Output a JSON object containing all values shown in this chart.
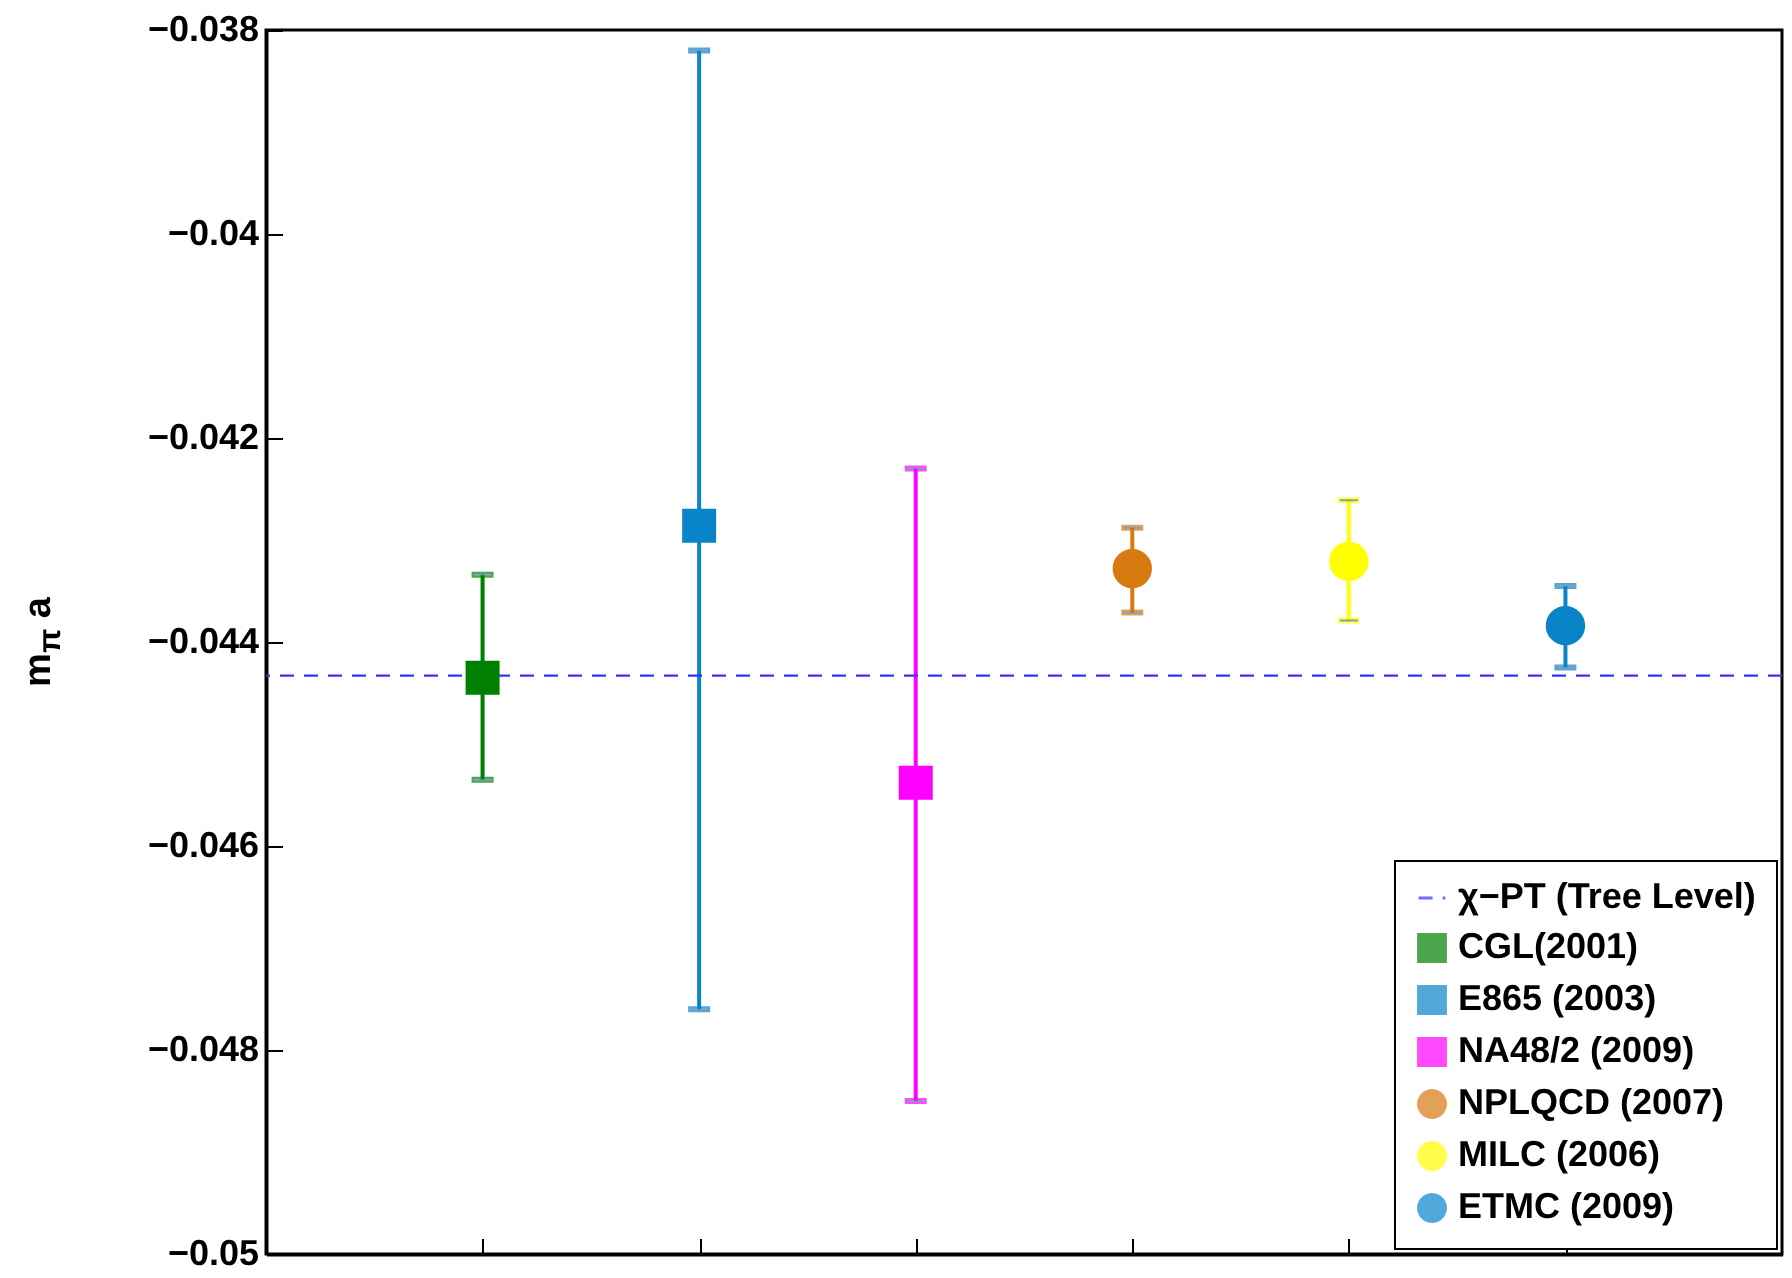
{
  "chart_data": {
    "type": "scatter",
    "ylabel": "m$_{π}$ a",
    "categories": [
      null,
      null,
      null,
      null,
      null,
      null
    ],
    "ylim": [
      -0.05,
      -0.038
    ],
    "yticks": [
      -0.05,
      -0.048,
      -0.046,
      -0.044,
      -0.042,
      -0.04,
      -0.038
    ],
    "grid": false,
    "legend": "bottom right",
    "tick_labels": "y",
    "ref_lines": [
      {
        "axis": "y",
        "value": -0.04433,
        "label": "χ−PT (Tree Level)",
        "color": "#3333ff",
        "line_style": "dashed"
      }
    ],
    "series": [
      {
        "name": "CGL(2001)",
        "color": "#007f00",
        "marker": "square",
        "values": [
          -0.04435,
          null,
          null,
          null,
          null,
          null
        ],
        "errors": [
          [
            -0.04535,
            -0.04334
          ],
          null,
          null,
          null,
          null,
          null
        ]
      },
      {
        "name": "E865 (2003)",
        "color": "#0a84c8",
        "marker": "square",
        "values": [
          null,
          -0.04286,
          null,
          null,
          null,
          null
        ],
        "errors": [
          null,
          [
            -0.0476,
            -0.0382
          ],
          null,
          null,
          null,
          null
        ]
      },
      {
        "name": "NA48/2 (2009)",
        "color": "#ff00ff",
        "marker": "square",
        "values": [
          null,
          null,
          -0.04538,
          null,
          null,
          null
        ],
        "errors": [
          null,
          null,
          [
            -0.0485,
            -0.0423
          ],
          null,
          null,
          null
        ]
      },
      {
        "name": "NPLQCD (2007)",
        "color": "#d97a10",
        "marker": "circle",
        "values": [
          null,
          null,
          null,
          -0.04328,
          null,
          null
        ],
        "errors": [
          null,
          null,
          null,
          [
            -0.04371,
            -0.04288
          ],
          null,
          null
        ]
      },
      {
        "name": "MILC (2006)",
        "color": "#ffff00",
        "marker": "circle",
        "values": [
          null,
          null,
          null,
          null,
          -0.04321,
          null
        ],
        "errors": [
          null,
          null,
          null,
          null,
          [
            -0.04379,
            -0.04261
          ],
          null
        ]
      },
      {
        "name": "ETMC (2009)",
        "color": "#0a84c8",
        "marker": "circle",
        "values": [
          null,
          null,
          null,
          null,
          null,
          -0.04384
        ],
        "errors": [
          null,
          null,
          null,
          null,
          null,
          [
            -0.04425,
            -0.04345
          ]
        ]
      }
    ]
  }
}
